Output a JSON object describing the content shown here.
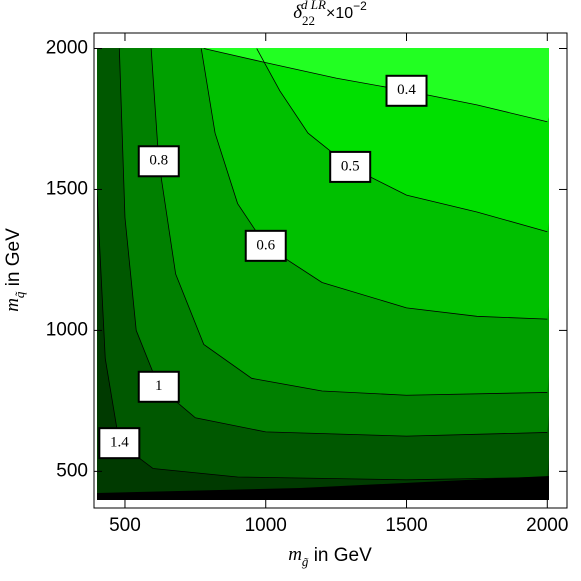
{
  "chart_data": {
    "type": "contour",
    "title": {
      "symbol": "δ",
      "subscript": "22",
      "superscript": "d LR",
      "factor": "×10",
      "exponent": "−2"
    },
    "x_label": {
      "symbol": "m",
      "subscript": "g̃",
      "text": " in GeV"
    },
    "y_label": {
      "symbol": "m",
      "subscript": "q̃",
      "text": " in GeV"
    },
    "xlim": [
      390,
      2070
    ],
    "ylim": [
      370,
      2055
    ],
    "xticks": [
      500,
      1000,
      1500,
      2000
    ],
    "yticks": [
      500,
      1000,
      1500,
      2000
    ],
    "color": "#003a00",
    "series": [
      {
        "name": "0.4",
        "level": 0.4,
        "color": "#22ff22",
        "x": [
          780,
          1000,
          1250,
          1500,
          1750,
          2000
        ],
        "y": [
          2000,
          1950,
          1895,
          1850,
          1800,
          1740
        ]
      },
      {
        "name": "0.5",
        "level": 0.5,
        "color": "#00e000",
        "x": [
          968,
          1050,
          1150,
          1300,
          1500,
          1750,
          2000
        ],
        "y": [
          2000,
          1850,
          1700,
          1580,
          1480,
          1420,
          1350
        ]
      },
      {
        "name": "0.6",
        "level": 0.6,
        "color": "#00c000",
        "x": [
          771,
          820,
          900,
          1000,
          1200,
          1500,
          1750,
          2000
        ],
        "y": [
          2000,
          1700,
          1450,
          1300,
          1170,
          1080,
          1050,
          1040
        ]
      },
      {
        "name": "0.8",
        "level": 0.8,
        "color": "#00a000",
        "x": [
          593,
          620,
          680,
          780,
          950,
          1200,
          1500,
          2000
        ],
        "y": [
          2000,
          1600,
          1200,
          950,
          830,
          785,
          770,
          780
        ]
      },
      {
        "name": "1",
        "level": 1,
        "color": "#008000",
        "x": [
          480,
          500,
          540,
          620,
          750,
          1000,
          1500,
          2000
        ],
        "y": [
          2000,
          1400,
          1000,
          800,
          690,
          640,
          625,
          638
        ]
      },
      {
        "name": "1.4",
        "level": 1.4,
        "color": "#005800",
        "x": [
          400,
          430,
          480,
          600,
          900,
          1500,
          2000
        ],
        "y": [
          1500,
          900,
          600,
          510,
          480,
          470,
          479
        ]
      }
    ]
  }
}
